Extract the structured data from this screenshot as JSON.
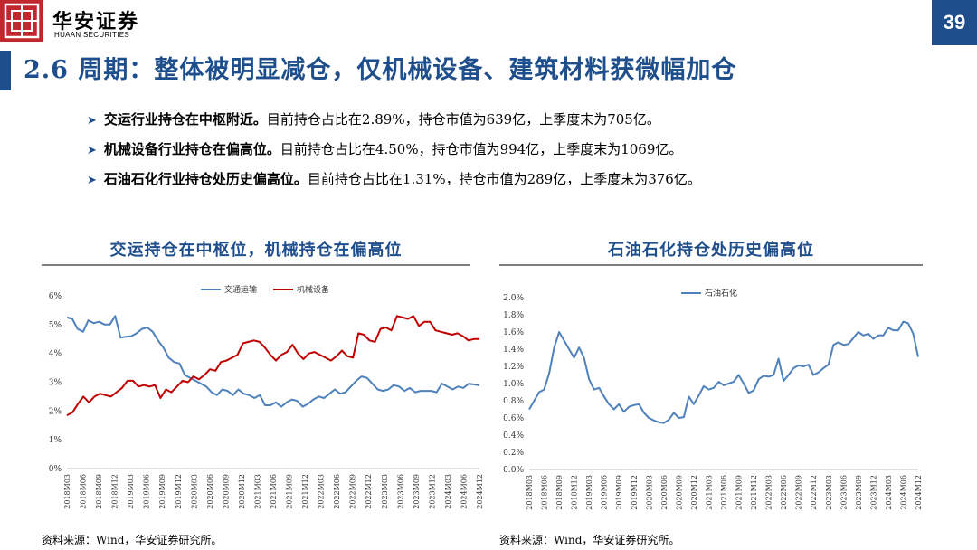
{
  "header": {
    "logo_cn": "华安证券",
    "logo_en": "HUAAN SECURITIES",
    "page_number": "39"
  },
  "title": "2.6 周期：整体被明显减仓，仅机械设备、建筑材料获微幅加仓",
  "bullets": [
    {
      "bold": "交运行业持仓在中枢附近。",
      "text": "目前持仓占比在2.89%，持仓市值为639亿，上季度末为705亿。"
    },
    {
      "bold": "机械设备行业持仓在偏高位。",
      "text": "目前持仓占比在4.50%，持仓市值为994亿，上季度末为1069亿。"
    },
    {
      "bold": "石油石化行业持仓处历史偏高位。",
      "text": "目前持仓占比在1.31%，持仓市值为289亿，上季度末为376亿。"
    }
  ],
  "colors": {
    "brand_blue": "#1f4e8c",
    "logo_red": "#c1272d",
    "series_blue": "#4f81bd",
    "series_red": "#c00000"
  },
  "left_chart": {
    "title": "交运持仓在中枢位，机械持仓在偏高位",
    "source": "资料来源：Wind，华安证券研究所。"
  },
  "right_chart": {
    "title": "石油石化持仓处历史偏高位",
    "source": "资料来源：Wind，华安证券研究所。"
  },
  "chart_data": [
    {
      "type": "line",
      "title": "交运持仓在中枢位，机械持仓在偏高位",
      "x_ticks": [
        "2018M03",
        "2018M06",
        "2018M09",
        "2018M12",
        "2019M03",
        "2019M06",
        "2019M09",
        "2019M12",
        "2020M03",
        "2020M06",
        "2020M09",
        "2020M12",
        "2021M03",
        "2021M06",
        "2021M09",
        "2021M12",
        "2022M03",
        "2022M06",
        "2022M09",
        "2022M12",
        "2023M03",
        "2023M06",
        "2023M09",
        "2023M12",
        "2024M03",
        "2024M06",
        "2024M12"
      ],
      "y_ticks": [
        "0%",
        "1%",
        "2%",
        "3%",
        "4%",
        "5%",
        "6%"
      ],
      "ylim": [
        0,
        6
      ],
      "legend": "top-center",
      "series": [
        {
          "name": "交通运输",
          "color": "#4f81bd",
          "values": [
            5.25,
            5.2,
            4.85,
            4.75,
            5.15,
            5.05,
            5.1,
            5.0,
            5.0,
            5.3,
            4.55,
            4.58,
            4.6,
            4.7,
            4.85,
            4.9,
            4.75,
            4.45,
            4.2,
            3.85,
            3.7,
            3.65,
            3.25,
            3.15,
            3.05,
            2.95,
            2.85,
            2.65,
            2.55,
            2.75,
            2.7,
            2.55,
            2.75,
            2.6,
            2.55,
            2.45,
            2.55,
            2.2,
            2.2,
            2.3,
            2.15,
            2.3,
            2.4,
            2.35,
            2.15,
            2.25,
            2.4,
            2.5,
            2.45,
            2.6,
            2.75,
            2.6,
            2.65,
            2.85,
            3.05,
            3.2,
            3.15,
            2.95,
            2.75,
            2.7,
            2.75,
            2.9,
            2.85,
            2.7,
            2.8,
            2.65,
            2.7,
            2.7,
            2.7,
            2.65,
            2.95,
            2.85,
            2.75,
            2.85,
            2.8,
            2.95,
            2.92,
            2.89
          ]
        },
        {
          "name": "机械设备",
          "color": "#c00000",
          "values": [
            1.85,
            1.95,
            2.25,
            2.5,
            2.3,
            2.5,
            2.6,
            2.55,
            2.5,
            2.65,
            2.8,
            3.05,
            3.05,
            2.85,
            2.9,
            2.85,
            2.9,
            2.45,
            2.75,
            2.65,
            2.85,
            3.05,
            3.0,
            3.2,
            3.1,
            3.25,
            3.45,
            3.4,
            3.7,
            3.75,
            3.85,
            3.95,
            4.35,
            4.4,
            4.45,
            4.4,
            4.2,
            3.95,
            3.75,
            3.95,
            4.05,
            4.3,
            4.0,
            3.8,
            4.0,
            4.05,
            3.95,
            3.85,
            3.75,
            3.9,
            4.1,
            3.9,
            3.85,
            4.7,
            4.65,
            4.45,
            4.4,
            4.85,
            4.9,
            4.8,
            5.3,
            5.25,
            5.2,
            5.3,
            4.95,
            5.1,
            5.1,
            4.8,
            4.75,
            4.7,
            4.65,
            4.7,
            4.6,
            4.45,
            4.5,
            4.5
          ]
        }
      ]
    },
    {
      "type": "line",
      "title": "石油石化持仓处历史偏高位",
      "x_ticks": [
        "2018M03",
        "2018M06",
        "2018M09",
        "2018M12",
        "2019M03",
        "2019M06",
        "2019M09",
        "2019M12",
        "2020M03",
        "2020M06",
        "2020M09",
        "2020M12",
        "2021M03",
        "2021M06",
        "2021M09",
        "2021M12",
        "2022M03",
        "2022M06",
        "2022M09",
        "2022M12",
        "2023M03",
        "2023M06",
        "2023M09",
        "2023M12",
        "2024M03",
        "2024M06",
        "2024M12"
      ],
      "y_ticks": [
        "0.0%",
        "0.2%",
        "0.4%",
        "0.6%",
        "0.8%",
        "1.0%",
        "1.2%",
        "1.4%",
        "1.6%",
        "1.8%",
        "2.0%"
      ],
      "ylim": [
        0,
        2
      ],
      "legend": "top-center",
      "series": [
        {
          "name": "石油石化",
          "color": "#4f81bd",
          "values": [
            0.7,
            0.8,
            0.9,
            0.93,
            1.12,
            1.42,
            1.6,
            1.5,
            1.4,
            1.3,
            1.42,
            1.3,
            1.05,
            0.93,
            0.95,
            0.85,
            0.76,
            0.7,
            0.76,
            0.67,
            0.73,
            0.75,
            0.76,
            0.66,
            0.6,
            0.57,
            0.55,
            0.54,
            0.58,
            0.66,
            0.6,
            0.61,
            0.85,
            0.76,
            0.86,
            0.97,
            0.93,
            0.95,
            1.02,
            0.98,
            1.0,
            1.02,
            1.1,
            1.0,
            0.89,
            0.92,
            1.05,
            1.09,
            1.08,
            1.1,
            1.29,
            1.03,
            1.1,
            1.18,
            1.21,
            1.2,
            1.22,
            1.1,
            1.13,
            1.18,
            1.22,
            1.45,
            1.48,
            1.45,
            1.46,
            1.53,
            1.6,
            1.56,
            1.58,
            1.52,
            1.56,
            1.56,
            1.65,
            1.62,
            1.62,
            1.72,
            1.7,
            1.58,
            1.31
          ]
        }
      ]
    }
  ]
}
